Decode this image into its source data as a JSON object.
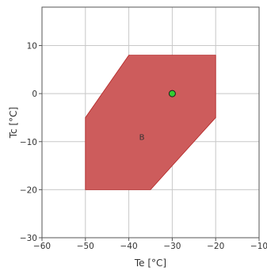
{
  "chart_data": {
    "type": "area",
    "xlabel": "Te [°C]",
    "ylabel": "Tc [°C]",
    "xlim": [
      -60,
      -10
    ],
    "ylim": [
      -30,
      18
    ],
    "x_ticks": [
      -60,
      -50,
      -40,
      -30,
      -20,
      -10
    ],
    "y_ticks": [
      -30,
      -20,
      -10,
      0,
      10
    ],
    "grid": true,
    "regions": [
      {
        "label": "B",
        "label_position": [
          -37,
          -9
        ],
        "color": "#cd5c5c",
        "edge_color": "#b22222",
        "vertices": [
          [
            -50,
            -20
          ],
          [
            -35,
            -20
          ],
          [
            -20,
            -5
          ],
          [
            -20,
            8
          ],
          [
            -40,
            8
          ],
          [
            -50,
            -5
          ]
        ]
      }
    ],
    "points": [
      {
        "x": -30,
        "y": 0,
        "color": "#32cd32"
      }
    ]
  }
}
